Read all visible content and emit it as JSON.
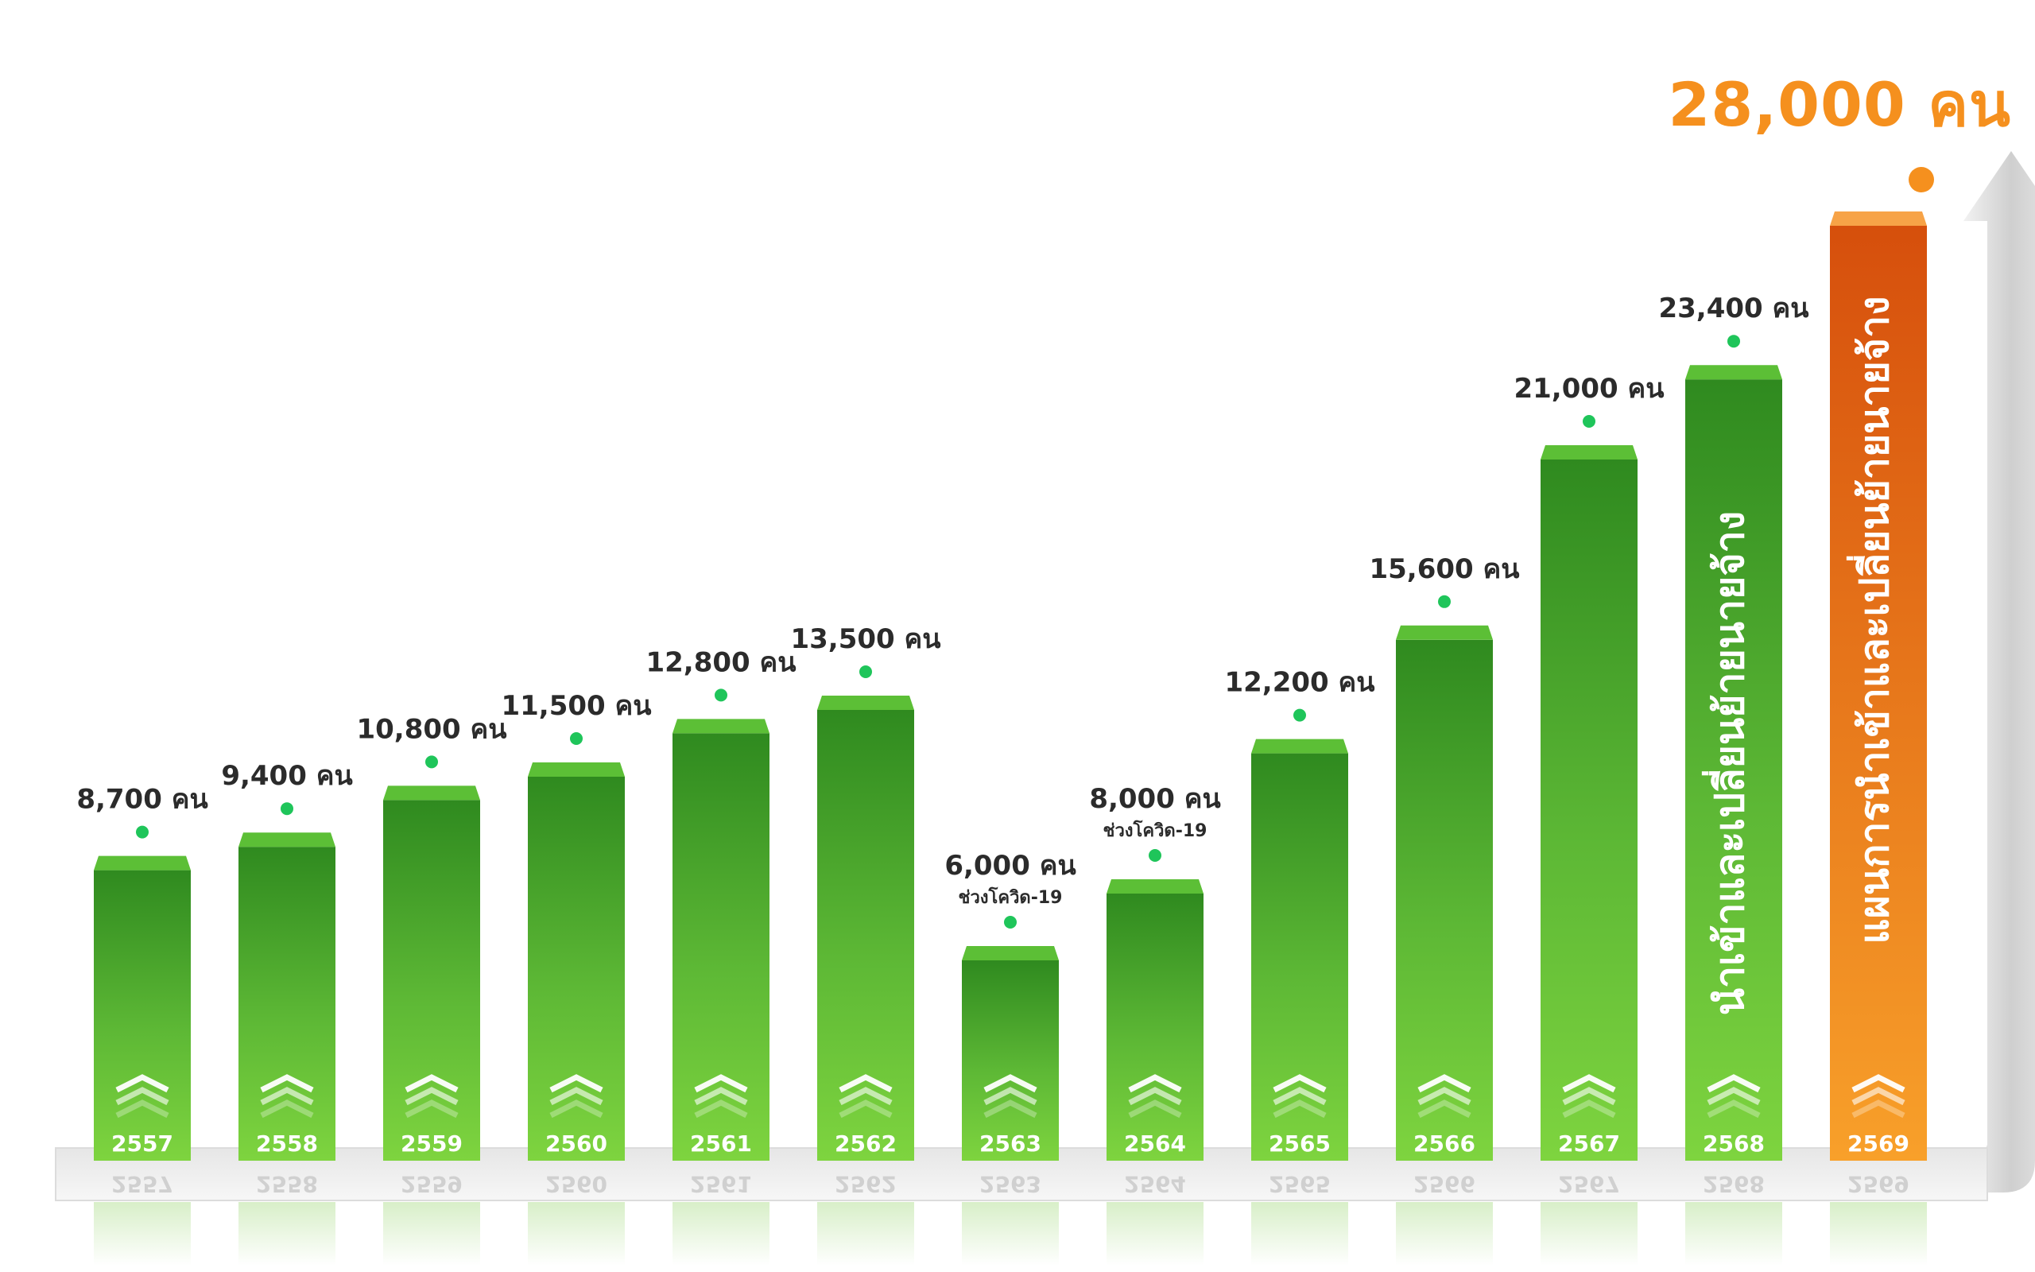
{
  "colors": {
    "bar_top": "#2f8a1f",
    "bar_bottom": "#7ed43f",
    "plan_top": "#d64f0c",
    "plan_bottom": "#f8a02a",
    "value_text": "#2b2b2b",
    "dot": "#1fc55a",
    "headline": "#f5901e"
  },
  "headline": "28,000 คน",
  "chart_data": {
    "type": "bar",
    "categories": [
      "2557",
      "2558",
      "2559",
      "2560",
      "2561",
      "2562",
      "2563",
      "2564",
      "2565",
      "2566",
      "2567",
      "2568",
      "2569"
    ],
    "values": [
      8700,
      9400,
      10800,
      11500,
      12800,
      13500,
      6000,
      8000,
      12200,
      15600,
      21000,
      23400,
      28000
    ],
    "value_labels": [
      "8,700 คน",
      "9,400 คน",
      "10,800 คน",
      "11,500 คน",
      "12,800 คน",
      "13,500 คน",
      "6,000 คน",
      "8,000 คน",
      "12,200 คน",
      "15,600 คน",
      "21,000 คน",
      "23,400 คน",
      "28,000 คน"
    ],
    "notes": {
      "6": "ช่วงโควิด-19",
      "7": "ช่วงโควิด-19"
    },
    "bar_captions": {
      "11": "นำเข้าและเปลี่ยนย้ายนายจ้าง",
      "12": "แผนการนำเข้าและเปลี่ยนย้ายนายจ้าง"
    },
    "highlight_index": 12,
    "title": "",
    "xlabel": "",
    "ylabel": "",
    "ylim": [
      0,
      30000
    ],
    "grid": false,
    "legend": "none"
  }
}
